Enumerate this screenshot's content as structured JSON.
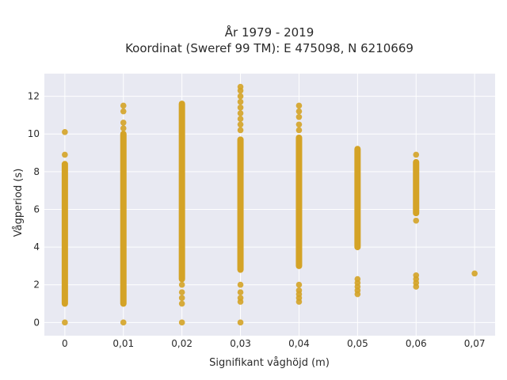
{
  "chart_data": {
    "type": "scatter",
    "title": "År 1979 - 2019",
    "subtitle": "Koordinat (Sweref 99 TM): E 475098, N 6210669",
    "xlabel": "Signifikant våghöjd (m)",
    "ylabel": "Vågperiod (s)",
    "xlim": [
      -0.0035,
      0.0735
    ],
    "ylim": [
      -0.7,
      13.2
    ],
    "x_ticks": [
      0,
      0.01,
      0.02,
      0.03,
      0.04,
      0.05,
      0.06,
      0.07
    ],
    "x_tick_labels": [
      "0",
      "0,01",
      "0,02",
      "0,03",
      "0,04",
      "0,05",
      "0,06",
      "0,07"
    ],
    "y_ticks": [
      0,
      2,
      4,
      6,
      8,
      10,
      12
    ],
    "y_tick_labels": [
      "0",
      "2",
      "4",
      "6",
      "8",
      "10",
      "12"
    ],
    "grid": true,
    "marker_color": "#D4A326",
    "plot_background": "#E8E9F2",
    "series": [
      {
        "ranges": [
          {
            "x": 0.0,
            "y_min": 1.0,
            "y_max": 8.4
          },
          {
            "x": 0.01,
            "y_min": 1.0,
            "y_max": 10.0
          },
          {
            "x": 0.02,
            "y_min": 2.3,
            "y_max": 11.6
          },
          {
            "x": 0.03,
            "y_min": 2.8,
            "y_max": 9.7
          },
          {
            "x": 0.04,
            "y_min": 3.0,
            "y_max": 9.8
          },
          {
            "x": 0.05,
            "y_min": 4.0,
            "y_max": 9.2
          },
          {
            "x": 0.06,
            "y_min": 5.8,
            "y_max": 8.5
          }
        ],
        "points": [
          {
            "x": 0.0,
            "y": 0.0
          },
          {
            "x": 0.0,
            "y": 8.9
          },
          {
            "x": 0.0,
            "y": 10.1
          },
          {
            "x": 0.01,
            "y": 0.0
          },
          {
            "x": 0.01,
            "y": 10.3
          },
          {
            "x": 0.01,
            "y": 10.6
          },
          {
            "x": 0.01,
            "y": 11.2
          },
          {
            "x": 0.01,
            "y": 11.5
          },
          {
            "x": 0.02,
            "y": 0.0
          },
          {
            "x": 0.02,
            "y": 1.0
          },
          {
            "x": 0.02,
            "y": 1.3
          },
          {
            "x": 0.02,
            "y": 1.6
          },
          {
            "x": 0.02,
            "y": 2.0
          },
          {
            "x": 0.03,
            "y": 0.0
          },
          {
            "x": 0.03,
            "y": 1.1
          },
          {
            "x": 0.03,
            "y": 1.3
          },
          {
            "x": 0.03,
            "y": 1.6
          },
          {
            "x": 0.03,
            "y": 2.0
          },
          {
            "x": 0.03,
            "y": 10.2
          },
          {
            "x": 0.03,
            "y": 10.5
          },
          {
            "x": 0.03,
            "y": 10.8
          },
          {
            "x": 0.03,
            "y": 11.1
          },
          {
            "x": 0.03,
            "y": 11.4
          },
          {
            "x": 0.03,
            "y": 11.7
          },
          {
            "x": 0.03,
            "y": 12.0
          },
          {
            "x": 0.03,
            "y": 12.3
          },
          {
            "x": 0.03,
            "y": 12.5
          },
          {
            "x": 0.04,
            "y": 1.1
          },
          {
            "x": 0.04,
            "y": 1.3
          },
          {
            "x": 0.04,
            "y": 1.5
          },
          {
            "x": 0.04,
            "y": 1.7
          },
          {
            "x": 0.04,
            "y": 2.0
          },
          {
            "x": 0.04,
            "y": 10.2
          },
          {
            "x": 0.04,
            "y": 10.5
          },
          {
            "x": 0.04,
            "y": 10.9
          },
          {
            "x": 0.04,
            "y": 11.2
          },
          {
            "x": 0.04,
            "y": 11.5
          },
          {
            "x": 0.05,
            "y": 1.5
          },
          {
            "x": 0.05,
            "y": 1.7
          },
          {
            "x": 0.05,
            "y": 1.9
          },
          {
            "x": 0.05,
            "y": 2.1
          },
          {
            "x": 0.05,
            "y": 2.3
          },
          {
            "x": 0.06,
            "y": 1.9
          },
          {
            "x": 0.06,
            "y": 2.1
          },
          {
            "x": 0.06,
            "y": 2.3
          },
          {
            "x": 0.06,
            "y": 2.5
          },
          {
            "x": 0.06,
            "y": 5.4
          },
          {
            "x": 0.06,
            "y": 8.9
          },
          {
            "x": 0.07,
            "y": 2.6
          }
        ]
      }
    ]
  }
}
